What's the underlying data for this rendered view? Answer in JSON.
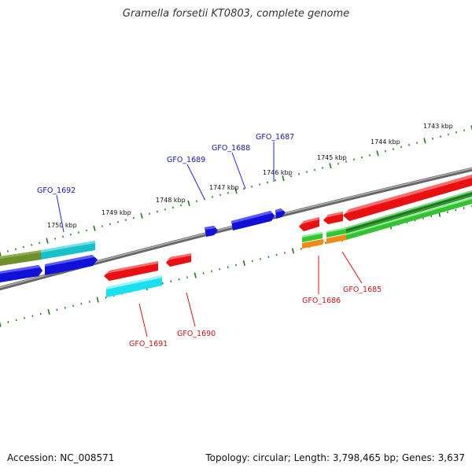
{
  "title": "Gramella forsetii KT0803, complete genome",
  "footer": {
    "accession": "Accession: NC_008571",
    "summary": "Topology: circular; Length: 3,798,465 bp; Genes: 3,637"
  },
  "colors": {
    "backbone": "#8a8a8a",
    "tick": "#1f7a1f",
    "label_plus": "#1515b0",
    "label_minus": "#c81414",
    "leader_plus": "#2020ff",
    "leader_minus": "#e01010"
  },
  "scale_labels": [
    "1743 kbp",
    "1744 kbp",
    "1745 kbp",
    "1746 kbp",
    "1747 kbp",
    "1748 kbp",
    "1749 kbp",
    "1750 kbp"
  ],
  "gene_labels": [
    {
      "text": "GFO_1687",
      "strand": "plus"
    },
    {
      "text": "GFO_1688",
      "strand": "plus"
    },
    {
      "text": "GFO_1689",
      "strand": "plus"
    },
    {
      "text": "GFO_1692",
      "strand": "plus"
    },
    {
      "text": "GFO_1686",
      "strand": "minus"
    },
    {
      "text": "GFO_1685",
      "strand": "minus"
    },
    {
      "text": "GFO_1690",
      "strand": "minus"
    },
    {
      "text": "GFO_1691",
      "strand": "minus"
    }
  ]
}
